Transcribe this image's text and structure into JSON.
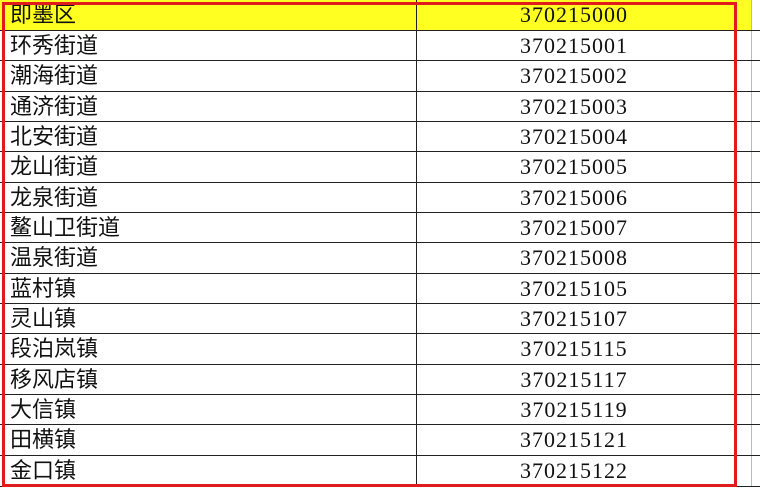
{
  "colors": {
    "highlight": "#ffff22",
    "selection_border": "#e01b1b"
  },
  "rows": [
    {
      "name": "即墨区",
      "code": "370215000",
      "highlighted": true
    },
    {
      "name": "环秀街道",
      "code": "370215001"
    },
    {
      "name": "潮海街道",
      "code": "370215002"
    },
    {
      "name": "通济街道",
      "code": "370215003"
    },
    {
      "name": "北安街道",
      "code": "370215004"
    },
    {
      "name": "龙山街道",
      "code": "370215005"
    },
    {
      "name": "龙泉街道",
      "code": "370215006"
    },
    {
      "name": "鳌山卫街道",
      "code": "370215007"
    },
    {
      "name": "温泉街道",
      "code": "370215008"
    },
    {
      "name": "蓝村镇",
      "code": "370215105"
    },
    {
      "name": "灵山镇",
      "code": "370215107"
    },
    {
      "name": "段泊岚镇",
      "code": "370215115"
    },
    {
      "name": "移风店镇",
      "code": "370215117"
    },
    {
      "name": "大信镇",
      "code": "370215119"
    },
    {
      "name": "田横镇",
      "code": "370215121"
    },
    {
      "name": "金口镇",
      "code": "370215122"
    }
  ]
}
